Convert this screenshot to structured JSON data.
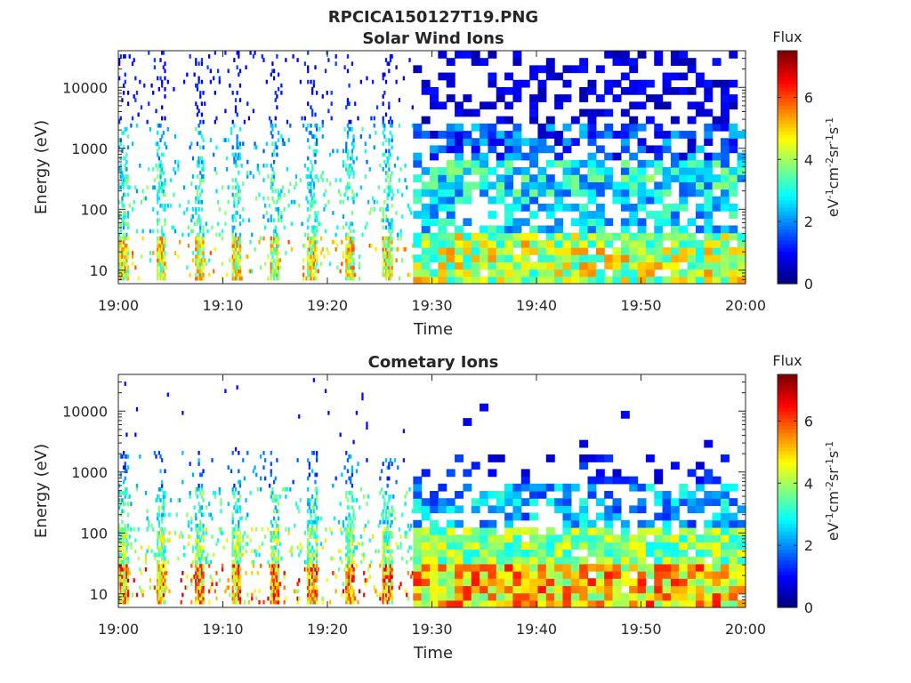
{
  "figure_title": "RPCICA150127T19.PNG",
  "chart_data": [
    {
      "type": "heatmap",
      "title": "Solar Wind Ions",
      "xlabel": "Time",
      "ylabel": "Energy (eV)",
      "x_range": [
        "19:00",
        "20:00"
      ],
      "xticks": [
        "19:00",
        "19:10",
        "19:20",
        "19:30",
        "19:40",
        "19:50",
        "20:00"
      ],
      "y_scale": "log",
      "ylim": [
        6,
        40000
      ],
      "yticks": [
        "10",
        "100",
        "1000",
        "10000"
      ],
      "yticks_values": [
        10,
        100,
        1000,
        10000
      ],
      "colorbar": {
        "title": "Flux",
        "label": "eV-1cm-2sr-1s-1",
        "range": [
          0,
          7.5
        ],
        "ticks": [
          "0",
          "2",
          "4",
          "6"
        ],
        "tick_values": [
          0,
          2,
          4,
          6
        ],
        "colormap": "jet"
      },
      "description_seed": 11,
      "profile": "solarwind"
    },
    {
      "type": "heatmap",
      "title": "Cometary Ions",
      "xlabel": "Time",
      "ylabel": "Energy (eV)",
      "x_range": [
        "19:00",
        "20:00"
      ],
      "xticks": [
        "19:00",
        "19:10",
        "19:20",
        "19:30",
        "19:40",
        "19:50",
        "20:00"
      ],
      "y_scale": "log",
      "ylim": [
        6,
        40000
      ],
      "yticks": [
        "10",
        "100",
        "1000",
        "10000"
      ],
      "yticks_values": [
        10,
        100,
        1000,
        10000
      ],
      "colorbar": {
        "title": "Flux",
        "label": "eV-1cm-2sr-1s-1",
        "range": [
          0,
          7.5
        ],
        "ticks": [
          "0",
          "2",
          "4",
          "6"
        ],
        "tick_values": [
          0,
          2,
          4,
          6
        ],
        "colormap": "jet"
      },
      "description_seed": 23,
      "profile": "cometary"
    }
  ]
}
